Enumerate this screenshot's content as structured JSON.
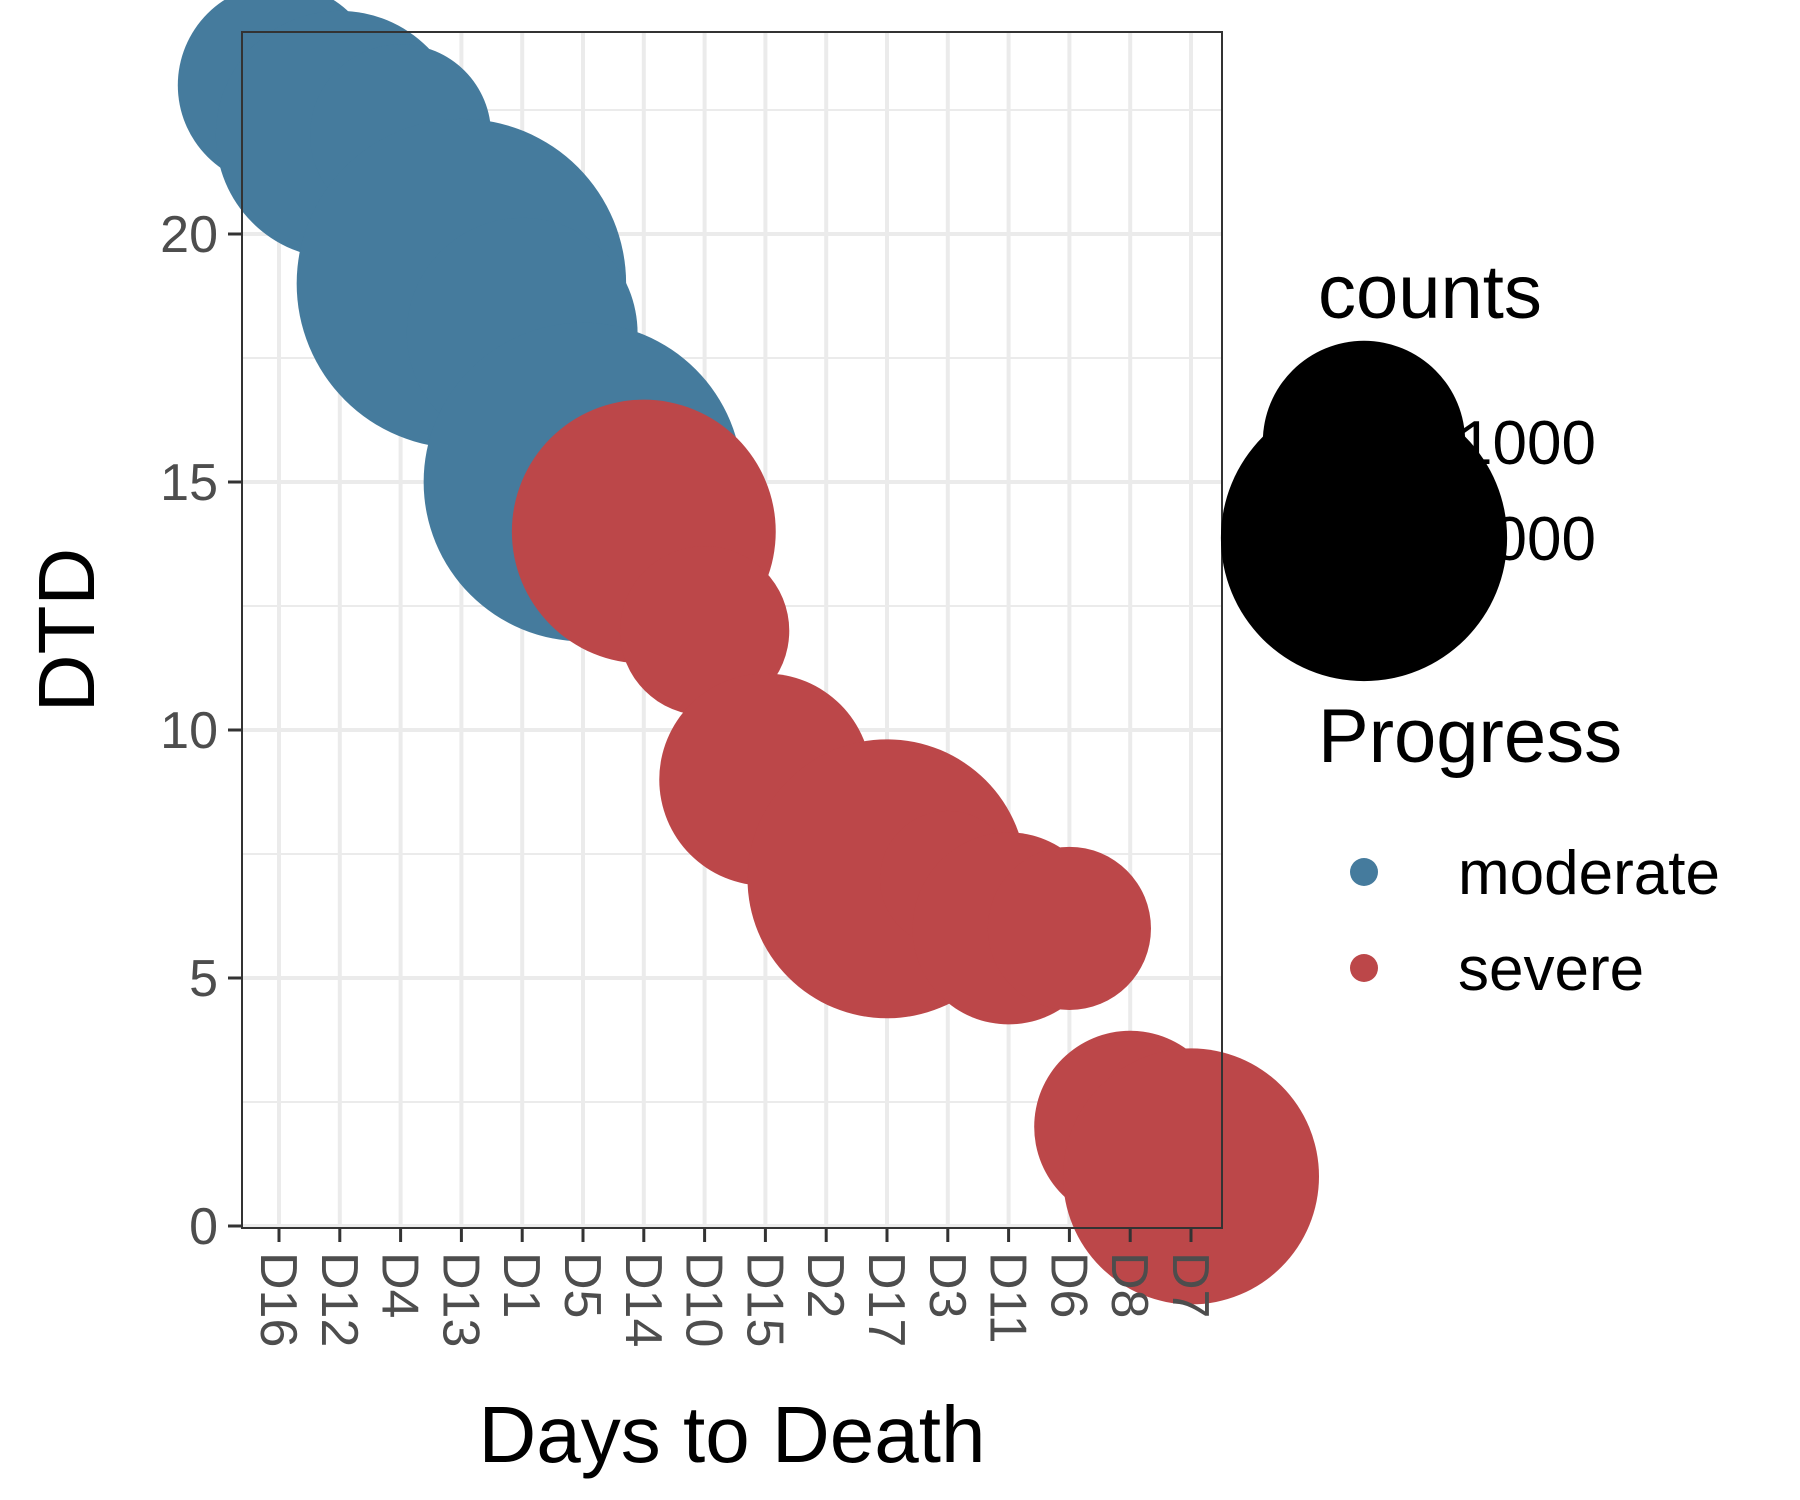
{
  "chart_data": {
    "type": "scatter",
    "xlabel": "Days to Death",
    "ylabel": "DTD",
    "categories": [
      "D16",
      "D12",
      "D4",
      "D13",
      "D1",
      "D5",
      "D14",
      "D10",
      "D15",
      "D2",
      "D17",
      "D3",
      "D11",
      "D6",
      "D8",
      "D7"
    ],
    "ylim": [
      0,
      24
    ],
    "yticks": [
      0,
      5,
      10,
      15,
      20
    ],
    "grid": true,
    "points": [
      {
        "x": "D16",
        "y": 23,
        "counts": 1000,
        "progress": "moderate"
      },
      {
        "x": "D12",
        "y": 22,
        "counts": 1500,
        "progress": "moderate"
      },
      {
        "x": "D4",
        "y": 22,
        "counts": 800,
        "progress": "moderate"
      },
      {
        "x": "D13",
        "y": 19,
        "counts": 2650,
        "progress": "moderate"
      },
      {
        "x": "D1",
        "y": 18,
        "counts": 1300,
        "progress": "moderate"
      },
      {
        "x": "D5",
        "y": 15,
        "counts": 2480,
        "progress": "moderate"
      },
      {
        "x": "D14",
        "y": 14,
        "counts": 1700,
        "progress": "severe"
      },
      {
        "x": "D10",
        "y": 12,
        "counts": 700,
        "progress": "severe"
      },
      {
        "x": "D15",
        "y": 9,
        "counts": 1100,
        "progress": "severe"
      },
      {
        "x": "D2",
        "y": 8,
        "counts": 150,
        "progress": "severe"
      },
      {
        "x": "D17",
        "y": 7,
        "counts": 1900,
        "progress": "severe"
      },
      {
        "x": "D3",
        "y": 7,
        "counts": 450,
        "progress": "severe"
      },
      {
        "x": "D11",
        "y": 6,
        "counts": 900,
        "progress": "severe"
      },
      {
        "x": "D6",
        "y": 6,
        "counts": 650,
        "progress": "severe"
      },
      {
        "x": "D8",
        "y": 2,
        "counts": 900,
        "progress": "severe"
      },
      {
        "x": "D7",
        "y": 1,
        "counts": 1600,
        "progress": "severe"
      }
    ],
    "legend": {
      "placement": "right",
      "size": {
        "title": "counts",
        "entries": [
          {
            "label": "1000",
            "value": 1000
          },
          {
            "label": "2000",
            "value": 2000
          }
        ]
      },
      "color": {
        "title": "Progress",
        "entries": [
          {
            "label": "moderate",
            "color": "#457b9d"
          },
          {
            "label": "severe",
            "color": "#bc4749"
          }
        ]
      }
    },
    "colors": {
      "moderate": "#457b9d",
      "severe": "#bc4749"
    }
  }
}
